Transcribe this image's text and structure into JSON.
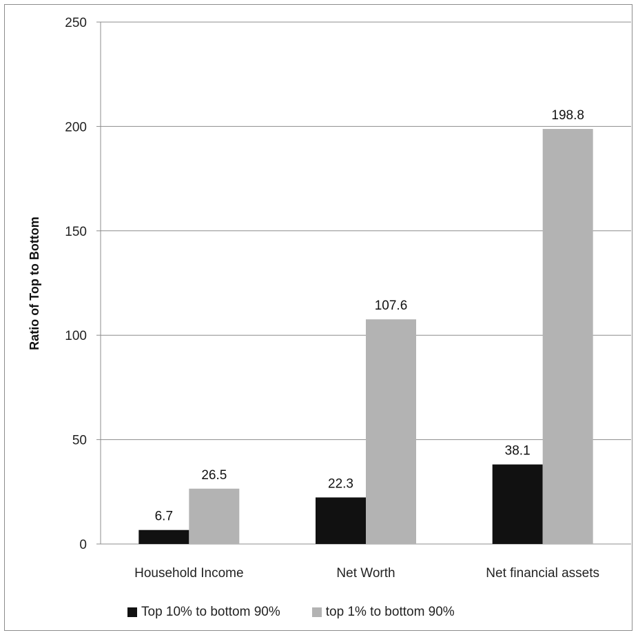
{
  "chart_data": {
    "type": "bar",
    "title": "",
    "xlabel": "",
    "ylabel": "Ratio of Top to Bottom",
    "ylim": [
      0,
      250
    ],
    "yticks": [
      0,
      50,
      100,
      150,
      200,
      250
    ],
    "grid": true,
    "legend_position": "bottom",
    "categories": [
      "Household Income",
      "Net Worth",
      "Net financial assets"
    ],
    "series": [
      {
        "name": "Top 10% to bottom 90%",
        "color": "#111111",
        "values": [
          6.7,
          22.3,
          38.1
        ],
        "labels": [
          "6.7",
          "22.3",
          "38.1"
        ]
      },
      {
        "name": "top 1% to bottom 90%",
        "color": "#b3b3b3",
        "values": [
          26.5,
          107.6,
          198.8
        ],
        "labels": [
          "26.5",
          "107.6",
          "198.8"
        ]
      }
    ]
  }
}
